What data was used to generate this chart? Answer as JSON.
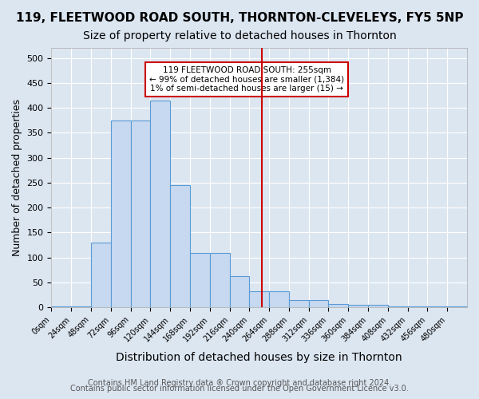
{
  "title1": "119, FLEETWOOD ROAD SOUTH, THORNTON-CLEVELEYS, FY5 5NP",
  "title2": "Size of property relative to detached houses in Thornton",
  "xlabel": "Distribution of detached houses by size in Thornton",
  "ylabel": "Number of detached properties",
  "footnote1": "Contains HM Land Registry data ® Crown copyright and database right 2024.",
  "footnote2": "Contains public sector information licensed under the Open Government Licence v3.0.",
  "bar_edges": [
    0,
    24,
    48,
    72,
    96,
    120,
    144,
    168,
    192,
    216,
    240,
    264,
    288,
    312,
    336,
    360,
    384,
    408,
    432,
    456,
    480,
    504
  ],
  "bar_heights": [
    2,
    2,
    130,
    375,
    375,
    415,
    245,
    110,
    110,
    63,
    32,
    32,
    15,
    15,
    7,
    5,
    5,
    2,
    2,
    2,
    2
  ],
  "bar_color": "#c6d9f0",
  "bar_edge_color": "#5b9bd5",
  "vline_x": 255,
  "vline_color": "#cc0000",
  "annotation_text": "119 FLEETWOOD ROAD SOUTH: 255sqm\n← 99% of detached houses are smaller (1,384)\n1% of semi-detached houses are larger (15) →",
  "annotation_box_color": "#ffffff",
  "annotation_border_color": "#cc0000",
  "ylim": [
    0,
    520
  ],
  "yticks": [
    0,
    50,
    100,
    150,
    200,
    250,
    300,
    350,
    400,
    450,
    500
  ],
  "xtick_labels": [
    "0sqm",
    "24sqm",
    "48sqm",
    "72sqm",
    "96sqm",
    "120sqm",
    "144sqm",
    "168sqm",
    "192sqm",
    "216sqm",
    "240sqm",
    "264sqm",
    "288sqm",
    "312sqm",
    "336sqm",
    "360sqm",
    "384sqm",
    "408sqm",
    "432sqm",
    "456sqm",
    "480sqm"
  ],
  "bg_color": "#dce6f1",
  "grid_color": "#ffffff",
  "title1_fontsize": 11,
  "title2_fontsize": 10,
  "xlabel_fontsize": 10,
  "ylabel_fontsize": 9,
  "footnote_fontsize": 7
}
